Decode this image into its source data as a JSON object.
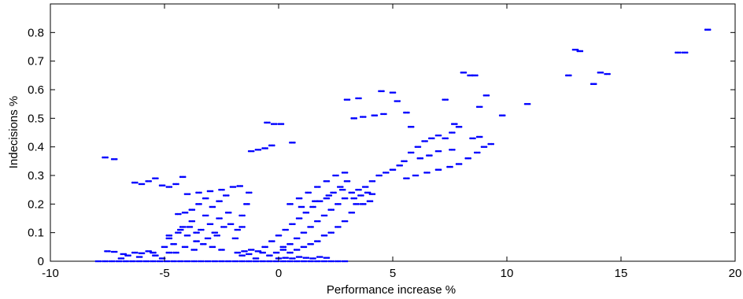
{
  "chart_data": {
    "type": "scatter",
    "xlabel": "Performance increase %",
    "ylabel": "Indecisions %",
    "xlim": [
      -10,
      20
    ],
    "ylim": [
      0,
      0.9
    ],
    "xticks": [
      -10,
      -5,
      0,
      5,
      10,
      15,
      20
    ],
    "xtick_labels": [
      "-10",
      "-5",
      "0",
      "5",
      "10",
      "15",
      "20"
    ],
    "yticks": [
      0,
      0.1,
      0.2,
      0.3,
      0.4,
      0.5,
      0.6,
      0.7,
      0.8
    ],
    "ytick_labels": [
      "0",
      "0.1",
      "0.2",
      "0.3",
      "0.4",
      "0.5",
      "0.6",
      "0.7",
      "0.8"
    ],
    "grid": false,
    "marker_color": "#0000ff",
    "series": [
      {
        "values": [
          [
            -7.9,
            0.0
          ],
          [
            -7.6,
            0.0
          ],
          [
            -7.3,
            0.0
          ],
          [
            -7.0,
            0.0
          ],
          [
            -6.7,
            0.0
          ],
          [
            -6.4,
            0.0
          ],
          [
            -6.1,
            0.0
          ],
          [
            -5.8,
            0.0
          ],
          [
            -5.5,
            0.0
          ],
          [
            -5.2,
            0.0
          ],
          [
            -4.9,
            0.0
          ],
          [
            -4.6,
            0.0
          ],
          [
            -4.3,
            0.0
          ],
          [
            -4.0,
            0.0
          ],
          [
            -3.7,
            0.0
          ],
          [
            -3.4,
            0.0
          ],
          [
            -3.1,
            0.0
          ],
          [
            -2.8,
            0.0
          ],
          [
            -2.5,
            0.0
          ],
          [
            -2.2,
            0.0
          ],
          [
            -1.9,
            0.0
          ],
          [
            -1.6,
            0.0
          ],
          [
            -1.3,
            0.0
          ],
          [
            -1.0,
            0.0
          ],
          [
            -0.7,
            0.0
          ],
          [
            -0.4,
            0.0
          ],
          [
            -0.1,
            0.0
          ],
          [
            0.2,
            0.0
          ],
          [
            0.5,
            0.0
          ],
          [
            0.8,
            0.0
          ],
          [
            1.1,
            0.0
          ],
          [
            1.4,
            0.0
          ],
          [
            1.7,
            0.0
          ],
          [
            2.0,
            0.0
          ],
          [
            2.3,
            0.0
          ],
          [
            2.6,
            0.0
          ],
          [
            2.9,
            0.0
          ],
          [
            -7.5,
            0.035
          ],
          [
            -7.2,
            0.033
          ],
          [
            -6.9,
            0.01
          ],
          [
            -6.6,
            0.02
          ],
          [
            -6.3,
            0.03
          ],
          [
            -6.0,
            0.028
          ],
          [
            -5.7,
            0.035
          ],
          [
            -5.4,
            0.02
          ],
          [
            -5.1,
            0.01
          ],
          [
            -4.8,
            0.03
          ],
          [
            -6.8,
            0.025
          ],
          [
            -6.1,
            0.015
          ],
          [
            -5.5,
            0.03
          ],
          [
            -5.0,
            0.05
          ],
          [
            -4.8,
            0.08
          ],
          [
            -4.6,
            0.06
          ],
          [
            -4.4,
            0.1
          ],
          [
            -4.2,
            0.12
          ],
          [
            -4.0,
            0.09
          ],
          [
            -3.8,
            0.14
          ],
          [
            -3.6,
            0.07
          ],
          [
            -3.4,
            0.11
          ],
          [
            -3.2,
            0.16
          ],
          [
            -3.0,
            0.13
          ],
          [
            -2.8,
            0.1
          ],
          [
            -2.6,
            0.15
          ],
          [
            -2.4,
            0.12
          ],
          [
            -2.2,
            0.17
          ],
          [
            -4.5,
            0.03
          ],
          [
            -4.1,
            0.05
          ],
          [
            -3.7,
            0.04
          ],
          [
            -3.3,
            0.06
          ],
          [
            -2.9,
            0.05
          ],
          [
            -2.5,
            0.04
          ],
          [
            -4.4,
            0.165
          ],
          [
            -4.1,
            0.17
          ],
          [
            -3.8,
            0.18
          ],
          [
            -3.5,
            0.2
          ],
          [
            -3.2,
            0.22
          ],
          [
            -2.9,
            0.19
          ],
          [
            -2.6,
            0.21
          ],
          [
            -2.3,
            0.23
          ],
          [
            -4.0,
            0.235
          ],
          [
            -3.5,
            0.24
          ],
          [
            -3.0,
            0.245
          ],
          [
            -2.5,
            0.25
          ],
          [
            -2.0,
            0.26
          ],
          [
            -1.7,
            0.263
          ],
          [
            -4.8,
            0.09
          ],
          [
            -4.3,
            0.11
          ],
          [
            -3.9,
            0.12
          ],
          [
            -3.6,
            0.1
          ],
          [
            -3.1,
            0.08
          ],
          [
            -2.7,
            0.09
          ],
          [
            -2.1,
            0.13
          ],
          [
            -1.8,
            0.11
          ],
          [
            -1.6,
            0.16
          ],
          [
            -1.4,
            0.2
          ],
          [
            -1.3,
            0.24
          ],
          [
            -1.6,
            0.12
          ],
          [
            -1.9,
            0.08
          ],
          [
            -7.6,
            0.363
          ],
          [
            -7.2,
            0.357
          ],
          [
            -6.3,
            0.275
          ],
          [
            -6.0,
            0.27
          ],
          [
            -5.7,
            0.28
          ],
          [
            -5.4,
            0.29
          ],
          [
            -5.1,
            0.265
          ],
          [
            -4.8,
            0.26
          ],
          [
            -4.5,
            0.27
          ],
          [
            -4.2,
            0.295
          ],
          [
            -1.2,
            0.385
          ],
          [
            -0.9,
            0.39
          ],
          [
            -0.6,
            0.395
          ],
          [
            -0.3,
            0.405
          ],
          [
            -0.5,
            0.485
          ],
          [
            -0.2,
            0.48
          ],
          [
            0.1,
            0.48
          ],
          [
            0.6,
            0.415
          ],
          [
            -1.8,
            0.03
          ],
          [
            -1.5,
            0.035
          ],
          [
            -1.2,
            0.04
          ],
          [
            -0.9,
            0.035
          ],
          [
            -1.6,
            0.02
          ],
          [
            -1.3,
            0.025
          ],
          [
            -1.0,
            0.01
          ],
          [
            -0.7,
            0.03
          ],
          [
            -0.6,
            0.05
          ],
          [
            -0.3,
            0.07
          ],
          [
            0.0,
            0.09
          ],
          [
            0.3,
            0.11
          ],
          [
            0.6,
            0.13
          ],
          [
            0.9,
            0.15
          ],
          [
            1.2,
            0.17
          ],
          [
            1.5,
            0.19
          ],
          [
            1.8,
            0.21
          ],
          [
            2.1,
            0.22
          ],
          [
            2.4,
            0.24
          ],
          [
            2.7,
            0.26
          ],
          [
            3.0,
            0.28
          ],
          [
            -0.4,
            0.02
          ],
          [
            -0.1,
            0.03
          ],
          [
            0.2,
            0.04
          ],
          [
            0.5,
            0.06
          ],
          [
            0.8,
            0.08
          ],
          [
            1.1,
            0.1
          ],
          [
            1.4,
            0.12
          ],
          [
            1.7,
            0.14
          ],
          [
            2.0,
            0.16
          ],
          [
            2.3,
            0.18
          ],
          [
            2.6,
            0.2
          ],
          [
            2.9,
            0.22
          ],
          [
            3.2,
            0.24
          ],
          [
            0.2,
            0.05
          ],
          [
            0.5,
            0.03
          ],
          [
            0.8,
            0.04
          ],
          [
            1.1,
            0.05
          ],
          [
            1.4,
            0.06
          ],
          [
            1.7,
            0.07
          ],
          [
            2.0,
            0.09
          ],
          [
            2.3,
            0.1
          ],
          [
            2.6,
            0.12
          ],
          [
            2.9,
            0.14
          ],
          [
            3.2,
            0.17
          ],
          [
            3.4,
            0.2
          ],
          [
            0.5,
            0.2
          ],
          [
            0.9,
            0.22
          ],
          [
            1.3,
            0.24
          ],
          [
            1.7,
            0.26
          ],
          [
            2.1,
            0.28
          ],
          [
            2.5,
            0.3
          ],
          [
            2.9,
            0.31
          ],
          [
            1.0,
            0.19
          ],
          [
            1.6,
            0.21
          ],
          [
            2.2,
            0.23
          ],
          [
            2.8,
            0.25
          ],
          [
            0.0,
            0.01
          ],
          [
            0.3,
            0.012
          ],
          [
            0.6,
            0.01
          ],
          [
            0.9,
            0.015
          ],
          [
            1.2,
            0.012
          ],
          [
            1.5,
            0.01
          ],
          [
            1.8,
            0.015
          ],
          [
            2.1,
            0.012
          ],
          [
            3.3,
            0.22
          ],
          [
            3.6,
            0.23
          ],
          [
            3.9,
            0.24
          ],
          [
            4.1,
            0.235
          ],
          [
            3.7,
            0.2
          ],
          [
            4.0,
            0.21
          ],
          [
            3.5,
            0.25
          ],
          [
            3.8,
            0.26
          ],
          [
            4.1,
            0.28
          ],
          [
            4.4,
            0.3
          ],
          [
            4.7,
            0.31
          ],
          [
            5.0,
            0.32
          ],
          [
            5.3,
            0.335
          ],
          [
            3.0,
            0.565
          ],
          [
            3.5,
            0.57
          ],
          [
            3.3,
            0.5
          ],
          [
            3.7,
            0.505
          ],
          [
            4.2,
            0.51
          ],
          [
            4.6,
            0.515
          ],
          [
            4.5,
            0.595
          ],
          [
            5.0,
            0.59
          ],
          [
            5.2,
            0.56
          ],
          [
            5.6,
            0.52
          ],
          [
            5.8,
            0.47
          ],
          [
            5.5,
            0.35
          ],
          [
            5.8,
            0.38
          ],
          [
            6.1,
            0.4
          ],
          [
            6.4,
            0.42
          ],
          [
            6.7,
            0.43
          ],
          [
            7.0,
            0.44
          ],
          [
            7.3,
            0.43
          ],
          [
            7.6,
            0.45
          ],
          [
            7.9,
            0.47
          ],
          [
            6.2,
            0.36
          ],
          [
            6.6,
            0.37
          ],
          [
            7.0,
            0.385
          ],
          [
            7.6,
            0.39
          ],
          [
            5.6,
            0.29
          ],
          [
            6.0,
            0.3
          ],
          [
            6.5,
            0.31
          ],
          [
            7.0,
            0.32
          ],
          [
            7.5,
            0.33
          ],
          [
            7.9,
            0.34
          ],
          [
            8.3,
            0.36
          ],
          [
            8.7,
            0.38
          ],
          [
            9.0,
            0.4
          ],
          [
            9.3,
            0.41
          ],
          [
            7.3,
            0.565
          ],
          [
            8.1,
            0.66
          ],
          [
            8.4,
            0.65
          ],
          [
            8.6,
            0.65
          ],
          [
            8.8,
            0.54
          ],
          [
            9.1,
            0.58
          ],
          [
            9.8,
            0.51
          ],
          [
            10.9,
            0.55
          ],
          [
            8.5,
            0.43
          ],
          [
            8.8,
            0.435
          ],
          [
            7.7,
            0.48
          ],
          [
            12.7,
            0.65
          ],
          [
            13.0,
            0.74
          ],
          [
            13.2,
            0.735
          ],
          [
            13.8,
            0.62
          ],
          [
            14.1,
            0.66
          ],
          [
            14.4,
            0.655
          ],
          [
            17.5,
            0.73
          ],
          [
            17.8,
            0.73
          ],
          [
            18.8,
            0.81
          ]
        ]
      }
    ]
  }
}
